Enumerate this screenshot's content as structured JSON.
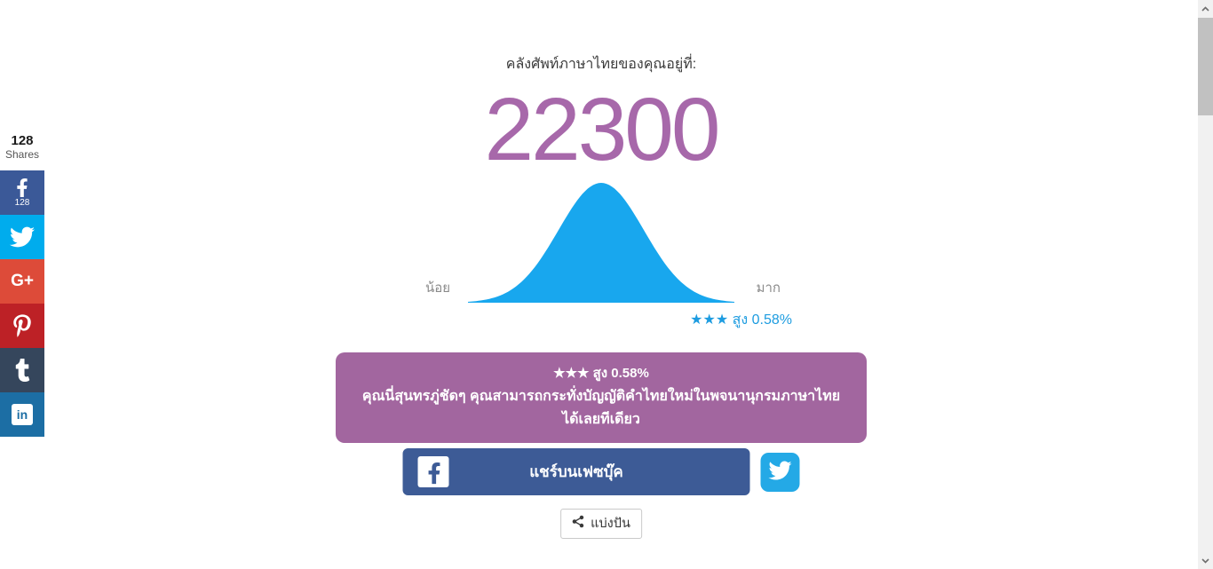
{
  "page": {
    "title": "คลังศัพท์ภาษาไทยของคุณอยู่ที่:",
    "score": "22300"
  },
  "chart_data": {
    "type": "area",
    "subtype": "bell-curve",
    "description": "Normal distribution bell curve showing vocabulary score position",
    "mean": 50,
    "sigma": 16,
    "x_range": [
      0,
      100
    ],
    "fill_color": "#18a7ee",
    "left_label": "น้อย",
    "right_label": "มาก",
    "caption": "★★★ สูง 0.58%"
  },
  "rating_line": "★★★ สูง 0.58%",
  "result_box": {
    "headline": "★★★ สูง 0.58%",
    "description": "คุณนี่สุนทรภู่ชัดๆ คุณสามารถกระทั่งบัญญัติคำไทยใหม่ในพจนานุกรมภาษาไทยได้เลยทีเดียว"
  },
  "share": {
    "facebook_button_label": "แชร์บนเฟซบุ๊ค",
    "small_share_label": "แบ่งปัน"
  },
  "share_sidebar": {
    "total_count": "128",
    "total_label": "Shares",
    "networks": [
      {
        "name": "facebook",
        "count": "128",
        "color": "#3b5998"
      },
      {
        "name": "twitter",
        "color": "#00aced"
      },
      {
        "name": "google-plus",
        "glyph": "G+",
        "color": "#dd4b39"
      },
      {
        "name": "pinterest",
        "color": "#bd2126"
      },
      {
        "name": "tumblr",
        "color": "#35465c"
      },
      {
        "name": "linkedin",
        "glyph": "in",
        "color": "#1c6ea4"
      }
    ]
  },
  "colors": {
    "score_purple": "#a768aa",
    "box_purple": "#a2669f",
    "curve_blue": "#18a7ee",
    "rating_blue": "#1d9ce0",
    "facebook_blue": "#3d5b96",
    "twitter_blue": "#24a9e6"
  }
}
